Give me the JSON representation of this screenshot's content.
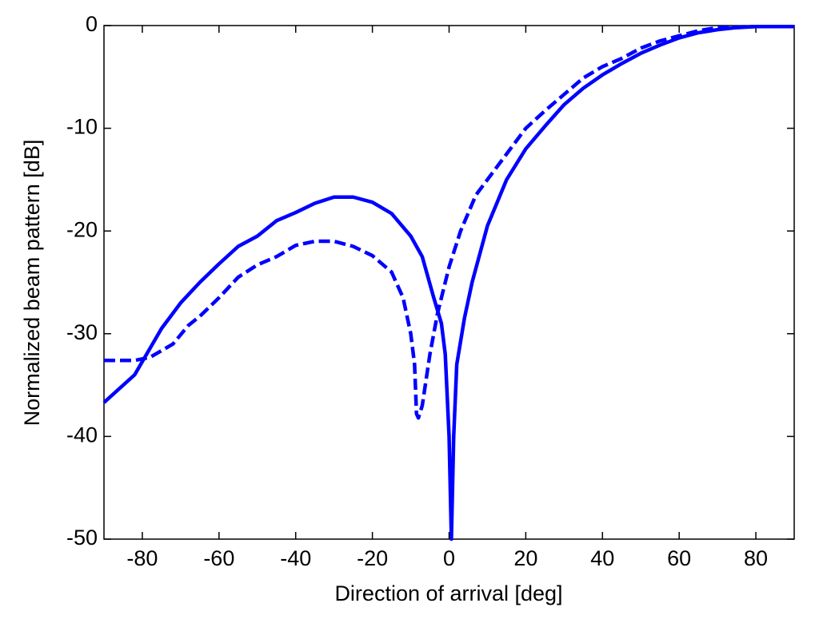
{
  "chart_data": {
    "type": "line",
    "xlabel": "Direction of arrival [deg]",
    "ylabel": "Normalized beam pattern [dB]",
    "xlim": [
      -90,
      90
    ],
    "xticks": [
      -80,
      -60,
      -40,
      -20,
      0,
      20,
      40,
      60,
      80
    ],
    "ylim": [
      -50,
      0
    ],
    "yticks": [
      -50,
      -40,
      -30,
      -20,
      -10,
      0
    ],
    "grid": false,
    "series": [
      {
        "color": "#0000ff",
        "line_style": "solid",
        "x": [
          -90,
          -82,
          -75,
          -70,
          -65,
          -60,
          -55,
          -50,
          -45,
          -40,
          -35,
          -30,
          -25,
          -20,
          -15,
          -10,
          -7,
          -4,
          -2,
          -1,
          0,
          0.6,
          1.2,
          2,
          4,
          6,
          10,
          15,
          20,
          25,
          30,
          35,
          40,
          45,
          50,
          55,
          60,
          65,
          70,
          75,
          80,
          90
        ],
        "values": [
          -36.7,
          -34,
          -29.5,
          -27,
          -25,
          -23.2,
          -21.5,
          -20.5,
          -19,
          -18.2,
          -17.3,
          -16.7,
          -16.7,
          -17.2,
          -18.3,
          -20.5,
          -22.5,
          -26.5,
          -29,
          -32,
          -40,
          -50,
          -40,
          -33,
          -28.5,
          -25,
          -19.5,
          -15,
          -12,
          -9.8,
          -7.7,
          -6.1,
          -4.8,
          -3.7,
          -2.7,
          -1.9,
          -1.2,
          -0.7,
          -0.4,
          -0.2,
          -0.1,
          -0.1
        ]
      },
      {
        "color": "#0000ff",
        "line_style": "dashed",
        "x": [
          -90,
          -82,
          -78,
          -72,
          -68,
          -65,
          -60,
          -55,
          -50,
          -45,
          -40,
          -35,
          -30,
          -25,
          -20,
          -15,
          -12,
          -10,
          -9,
          -8.5,
          -8,
          -7,
          -5,
          -3,
          0,
          3,
          7,
          10,
          15,
          20,
          25,
          30,
          35,
          40,
          45,
          50,
          55,
          60,
          65,
          70,
          80,
          90
        ],
        "values": [
          -32.6,
          -32.6,
          -32.3,
          -31,
          -29.2,
          -28.3,
          -26.5,
          -24.5,
          -23.3,
          -22.5,
          -21.4,
          -21,
          -21,
          -21.5,
          -22.4,
          -24,
          -26.5,
          -30,
          -33,
          -37.8,
          -38.2,
          -37,
          -32,
          -28,
          -23.5,
          -20,
          -16.5,
          -15,
          -12.5,
          -10,
          -8.3,
          -6.7,
          -5.1,
          -4,
          -3.2,
          -2.2,
          -1.5,
          -1,
          -0.5,
          -0.2,
          -0.1,
          -0.1
        ]
      }
    ]
  }
}
